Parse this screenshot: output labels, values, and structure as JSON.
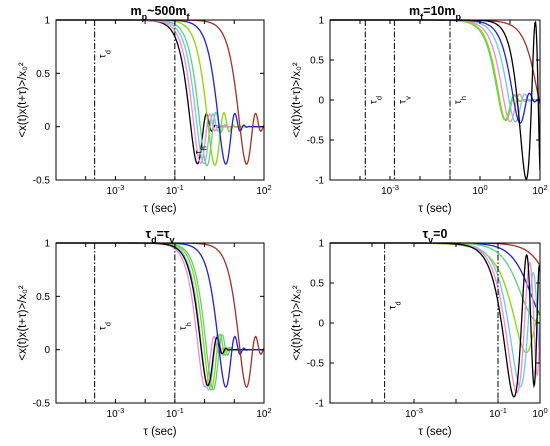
{
  "figure": {
    "ylabel": "<x(t)x(t+τ)>/x₀²",
    "xlabel": "τ (sec)"
  },
  "chart_data": [
    {
      "type": "line",
      "title": "mp~500mf",
      "title_parts": {
        "a": "m",
        "a_sub": "p",
        "b": "~500m",
        "b_sub": "f"
      },
      "xlabel": "τ (sec)",
      "ylabel": "<x(t)x(t+τ)>/x₀²",
      "x_scale": "log",
      "xlim": [
        1e-05,
        100
      ],
      "ylim": [
        -0.5,
        1
      ],
      "xticks": [
        {
          "v": 0.001,
          "l": "10",
          "e": "-3"
        },
        {
          "v": 0.1,
          "l": "10",
          "e": "-1"
        },
        {
          "v": 100,
          "l": "10",
          "e": "2"
        }
      ],
      "yticks": [
        {
          "v": 1,
          "l": "1"
        },
        {
          "v": 0.5,
          "l": "0.5"
        },
        {
          "v": 0,
          "l": "0"
        },
        {
          "v": -0.5,
          "l": "-0.5"
        }
      ],
      "vlines": [
        {
          "x": 0.0002,
          "label": "τd"
        },
        {
          "x": 0.1,
          "label": ""
        },
        {
          "x": 100,
          "label": ""
        }
      ],
      "annotations": [
        {
          "x": 0.0002,
          "y": 0.68,
          "text": "τ",
          "sub": "d"
        },
        {
          "x": 0.34,
          "y": -0.22,
          "text": "τ",
          "sub": "h"
        }
      ],
      "series": [
        {
          "color": "#000000",
          "kind": "damped",
          "T": 0.55,
          "w": 5.4,
          "a": 0.3
        },
        {
          "color": "#5bd27a",
          "kind": "damped",
          "T": 1.2,
          "w": 2.6,
          "a": 0.3
        },
        {
          "color": "#6fc5f0",
          "kind": "damped",
          "T": 0.9,
          "w": 3.3,
          "a": 0.3
        },
        {
          "color": "#f08ad2",
          "kind": "damped",
          "T": 0.7,
          "w": 4.2,
          "a": 0.3
        },
        {
          "color": "#8fd400",
          "kind": "damped",
          "T": 2.2,
          "w": 1.4,
          "a": 0.3
        },
        {
          "color": "#2020d8",
          "kind": "damped",
          "T": 5.0,
          "w": 0.6,
          "a": 0.3
        },
        {
          "color": "#a0302a",
          "kind": "damped",
          "T": 25,
          "w": 0.12,
          "a": 0.3
        }
      ]
    },
    {
      "type": "line",
      "title": "mf=10mp",
      "title_parts": {
        "a": "m",
        "a_sub": "f",
        "b": "=10m",
        "b_sub": "p"
      },
      "xlabel": "τ (sec)",
      "ylabel": "<x(t)x(t+τ)>/x₀²",
      "x_scale": "log",
      "xlim": [
        1e-05,
        100
      ],
      "ylim": [
        -1,
        1
      ],
      "xticks": [
        {
          "v": 0.001,
          "l": "10",
          "e": "-3"
        },
        {
          "v": 1,
          "l": "10",
          "e": "0"
        },
        {
          "v": 100,
          "l": "10",
          "e": "2"
        }
      ],
      "yticks": [
        {
          "v": 1,
          "l": "1"
        },
        {
          "v": 0.5,
          "l": "0.5"
        },
        {
          "v": 0,
          "l": "0"
        },
        {
          "v": -0.5,
          "l": "-0.5"
        },
        {
          "v": -1,
          "l": "-1"
        }
      ],
      "vlines": [
        {
          "x": 0.00015,
          "label": "τd"
        },
        {
          "x": 0.0014,
          "label": "τv"
        },
        {
          "x": 0.1,
          "label": "τh"
        },
        {
          "x": 100,
          "label": ""
        }
      ],
      "annotations": [
        {
          "x": 0.00015,
          "y": 0.0,
          "text": "τ",
          "sub": "d"
        },
        {
          "x": 0.0014,
          "y": 0.0,
          "text": "τ",
          "sub": "v"
        },
        {
          "x": 0.1,
          "y": 0.0,
          "text": "τ",
          "sub": "h"
        }
      ],
      "series": [
        {
          "color": "#5bd27a",
          "kind": "damped",
          "T": 5,
          "w": 0.45,
          "a": 0.35
        },
        {
          "color": "#8fd400",
          "kind": "damped",
          "T": 5.5,
          "w": 0.42,
          "a": 0.35
        },
        {
          "color": "#f08ad2",
          "kind": "damped",
          "T": 8,
          "w": 0.3,
          "a": 0.3
        },
        {
          "color": "#6fc5f0",
          "kind": "damped",
          "T": 12,
          "w": 0.2,
          "a": 0.3
        },
        {
          "color": "#2020d8",
          "kind": "damped",
          "T": 18,
          "w": 0.14,
          "a": 0.3
        },
        {
          "color": "#a0302a",
          "kind": "damped",
          "T": 100,
          "w": 0.02,
          "a": 0.3
        },
        {
          "color": "#000000",
          "kind": "osc",
          "T": 3000,
          "w": 0.09,
          "a": 0.3
        }
      ]
    },
    {
      "type": "line",
      "title": "τd=τv",
      "title_parts": {
        "a": "τ",
        "a_sub": "d",
        "b": "=τ",
        "b_sub": "v"
      },
      "xlabel": "τ (sec)",
      "ylabel": "<x(t)x(t+τ)>/x₀²",
      "x_scale": "log",
      "xlim": [
        1e-05,
        100
      ],
      "ylim": [
        -0.5,
        1
      ],
      "xticks": [
        {
          "v": 0.001,
          "l": "10",
          "e": "-3"
        },
        {
          "v": 0.1,
          "l": "10",
          "e": "-1"
        },
        {
          "v": 100,
          "l": "10",
          "e": "2"
        }
      ],
      "yticks": [
        {
          "v": 1,
          "l": "1"
        },
        {
          "v": 0.5,
          "l": "0.5"
        },
        {
          "v": 0,
          "l": "0"
        },
        {
          "v": -0.5,
          "l": "-0.5"
        }
      ],
      "vlines": [
        {
          "x": 0.0002,
          "label": "τd"
        },
        {
          "x": 0.1,
          "label": "τh"
        },
        {
          "x": 100,
          "label": ""
        }
      ],
      "annotations": [
        {
          "x": 0.0002,
          "y": 0.22,
          "text": "τ",
          "sub": "d"
        },
        {
          "x": 0.1,
          "y": 0.22,
          "text": "τ",
          "sub": "h"
        }
      ],
      "series": [
        {
          "color": "#f08ad2",
          "kind": "damped",
          "T": 1.0,
          "w": 3.0,
          "a": 0.3
        },
        {
          "color": "#6fc5f0",
          "kind": "damped",
          "T": 1.4,
          "w": 2.3,
          "a": 0.3
        },
        {
          "color": "#8fd400",
          "kind": "damped",
          "T": 1.7,
          "w": 1.9,
          "a": 0.3
        },
        {
          "color": "#5bd27a",
          "kind": "damped",
          "T": 2.0,
          "w": 1.6,
          "a": 0.3
        },
        {
          "color": "#000000",
          "kind": "damped",
          "T": 1.2,
          "w": 2.4,
          "a": 0.3
        },
        {
          "color": "#2020d8",
          "kind": "damped",
          "T": 5.0,
          "w": 0.6,
          "a": 0.3
        },
        {
          "color": "#a0302a",
          "kind": "damped",
          "T": 25,
          "w": 0.12,
          "a": 0.3
        }
      ]
    },
    {
      "type": "line",
      "title": "τv=0",
      "title_parts": {
        "a": "τ",
        "a_sub": "v",
        "b": "=0",
        "b_sub": ""
      },
      "xlabel": "τ (sec)",
      "ylabel": "<x(t)x(t+τ)>/x₀²",
      "x_scale": "log",
      "xlim": [
        1e-05,
        1
      ],
      "ylim": [
        -1,
        1
      ],
      "xticks": [
        {
          "v": 0.001,
          "l": "10",
          "e": "-3"
        },
        {
          "v": 0.1,
          "l": "10",
          "e": "-1"
        },
        {
          "v": 1,
          "l": "10",
          "e": "0"
        }
      ],
      "yticks": [
        {
          "v": 1,
          "l": "1"
        },
        {
          "v": 0.5,
          "l": "0.5"
        },
        {
          "v": 0,
          "l": "0"
        },
        {
          "v": -0.5,
          "l": "-0.5"
        },
        {
          "v": -1,
          "l": "-1"
        }
      ],
      "vlines": [
        {
          "x": 0.0002,
          "label": "τd"
        },
        {
          "x": 0.1,
          "label": ""
        },
        {
          "x": 1,
          "label": ""
        }
      ],
      "annotations": [
        {
          "x": 0.0002,
          "y": 0.22,
          "text": "τ",
          "sub": "d"
        }
      ],
      "series": [
        {
          "color": "#a0302a",
          "kind": "decay",
          "T": 2,
          "w": 0,
          "a": 0
        },
        {
          "color": "#2020d8",
          "kind": "decay",
          "T": 0.6,
          "w": 0,
          "a": 0
        },
        {
          "color": "#5bd27a",
          "kind": "decay",
          "T": 0.35,
          "w": 0,
          "a": 0
        },
        {
          "color": "#8fd400",
          "kind": "osc",
          "T": 0.5,
          "w": 6,
          "a": 0
        },
        {
          "color": "#6fc5f0",
          "kind": "osc",
          "T": 1.5,
          "w": 9,
          "a": 0
        },
        {
          "color": "#f08ad2",
          "kind": "osc",
          "T": 2.0,
          "w": 11,
          "a": 0
        },
        {
          "color": "#000000",
          "kind": "osc",
          "T": 3.0,
          "w": 13,
          "a": 0
        }
      ]
    }
  ]
}
